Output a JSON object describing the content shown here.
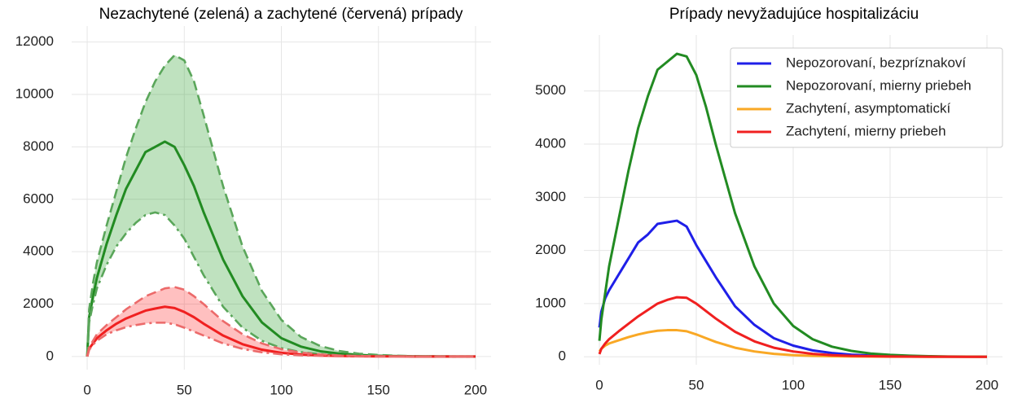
{
  "chart_data": [
    {
      "type": "line",
      "title": "Nezachytené (zelená) a zachytené (červená) prípady",
      "x": [
        0,
        1,
        3,
        5,
        10,
        15,
        20,
        25,
        30,
        35,
        40,
        45,
        50,
        55,
        60,
        70,
        80,
        90,
        100,
        110,
        120,
        130,
        140,
        150,
        160,
        170,
        180,
        190,
        200
      ],
      "series": [
        {
          "color": "#228b22",
          "linestyle": "solid",
          "values": [
            0,
            1500,
            2300,
            3000,
            4300,
            5400,
            6400,
            7100,
            7800,
            8000,
            8200,
            8000,
            7300,
            6500,
            5500,
            3700,
            2300,
            1300,
            700,
            380,
            200,
            110,
            60,
            30,
            15,
            8,
            4,
            2,
            1
          ]
        },
        {
          "color": "#5aa65a",
          "linestyle": "dashed",
          "values": [
            0,
            1800,
            2800,
            3600,
            5000,
            6300,
            7600,
            8700,
            9700,
            10500,
            11100,
            11500,
            11300,
            10500,
            9200,
            6500,
            4200,
            2500,
            1400,
            750,
            400,
            210,
            110,
            60,
            30,
            15,
            8,
            4,
            2
          ]
        },
        {
          "color": "#5aa65a",
          "linestyle": "dashdot",
          "values": [
            0,
            1300,
            2000,
            2600,
            3500,
            4200,
            4700,
            5100,
            5400,
            5500,
            5400,
            5000,
            4500,
            3800,
            3100,
            1900,
            1100,
            600,
            320,
            170,
            90,
            45,
            25,
            12,
            6,
            3,
            2,
            1,
            0
          ]
        },
        {
          "color": "#f02020",
          "linestyle": "solid",
          "values": [
            0,
            300,
            500,
            700,
            1000,
            1250,
            1450,
            1600,
            1750,
            1830,
            1900,
            1850,
            1700,
            1500,
            1250,
            800,
            470,
            260,
            140,
            75,
            40,
            20,
            10,
            5,
            3,
            1,
            1,
            0,
            0
          ]
        },
        {
          "color": "#ec6a6a",
          "linestyle": "dashed",
          "values": [
            0,
            350,
            600,
            850,
            1200,
            1500,
            1800,
            2050,
            2300,
            2450,
            2600,
            2650,
            2550,
            2300,
            2000,
            1350,
            850,
            500,
            280,
            150,
            80,
            40,
            20,
            10,
            5,
            3,
            1,
            1,
            0
          ]
        },
        {
          "color": "#ec6a6a",
          "linestyle": "dashdot",
          "values": [
            0,
            250,
            450,
            600,
            850,
            1000,
            1120,
            1200,
            1260,
            1290,
            1290,
            1230,
            1100,
            950,
            800,
            500,
            290,
            160,
            85,
            45,
            25,
            12,
            6,
            3,
            2,
            1,
            0,
            0,
            0
          ]
        }
      ],
      "bands": [
        {
          "series": [
            1,
            2
          ],
          "color": "#2ca02c",
          "opacity": 0.3
        },
        {
          "series": [
            4,
            5
          ],
          "color": "#ff3030",
          "opacity": 0.3
        }
      ],
      "xlim": [
        -8,
        208
      ],
      "xticks": [
        0,
        50,
        100,
        150,
        200
      ],
      "ylim": [
        -500,
        12300
      ],
      "yticks": [
        0,
        2000,
        4000,
        6000,
        8000,
        10000,
        12000
      ],
      "grid": true
    },
    {
      "type": "line",
      "title": "Prípady nevyžadujúce hospitalizáciu",
      "x": [
        0,
        1,
        3,
        5,
        10,
        15,
        20,
        25,
        30,
        35,
        40,
        45,
        50,
        55,
        60,
        70,
        80,
        90,
        100,
        110,
        120,
        130,
        140,
        150,
        160,
        170,
        180,
        190,
        200
      ],
      "series": [
        {
          "name": "Nepozorovaní, bezpríznakoví",
          "color": "#1f1fe8",
          "linestyle": "solid",
          "values": [
            550,
            850,
            1100,
            1250,
            1550,
            1850,
            2150,
            2300,
            2500,
            2530,
            2560,
            2450,
            2100,
            1800,
            1500,
            950,
            600,
            350,
            210,
            120,
            70,
            40,
            22,
            12,
            7,
            4,
            2,
            1,
            1
          ]
        },
        {
          "name": "Nepozorovaní, mierny priebeh",
          "color": "#228b22",
          "linestyle": "solid",
          "values": [
            300,
            700,
            1200,
            1700,
            2600,
            3500,
            4300,
            4900,
            5400,
            5550,
            5700,
            5650,
            5300,
            4700,
            4000,
            2700,
            1700,
            1000,
            580,
            330,
            190,
            110,
            60,
            35,
            20,
            11,
            6,
            3,
            2
          ]
        },
        {
          "name": "Zachytení, asymptomatickí",
          "color": "#f9a825",
          "linestyle": "solid",
          "values": [
            100,
            150,
            210,
            250,
            310,
            370,
            420,
            460,
            490,
            500,
            500,
            480,
            420,
            350,
            280,
            170,
            100,
            55,
            30,
            16,
            9,
            5,
            3,
            2,
            1,
            0,
            0,
            0,
            0
          ]
        },
        {
          "name": "Zachytení, mierny priebeh",
          "color": "#f02020",
          "linestyle": "solid",
          "values": [
            50,
            150,
            250,
            330,
            480,
            620,
            760,
            880,
            1000,
            1070,
            1120,
            1110,
            1000,
            860,
            720,
            470,
            290,
            170,
            100,
            55,
            30,
            17,
            10,
            5,
            3,
            2,
            1,
            0,
            0
          ]
        }
      ],
      "xlim": [
        -8,
        208
      ],
      "xticks": [
        0,
        50,
        100,
        150,
        200
      ],
      "ylim": [
        -150,
        5900
      ],
      "yticks": [
        0,
        1000,
        2000,
        3000,
        4000,
        5000
      ],
      "grid": true,
      "legend": "upper right"
    }
  ]
}
